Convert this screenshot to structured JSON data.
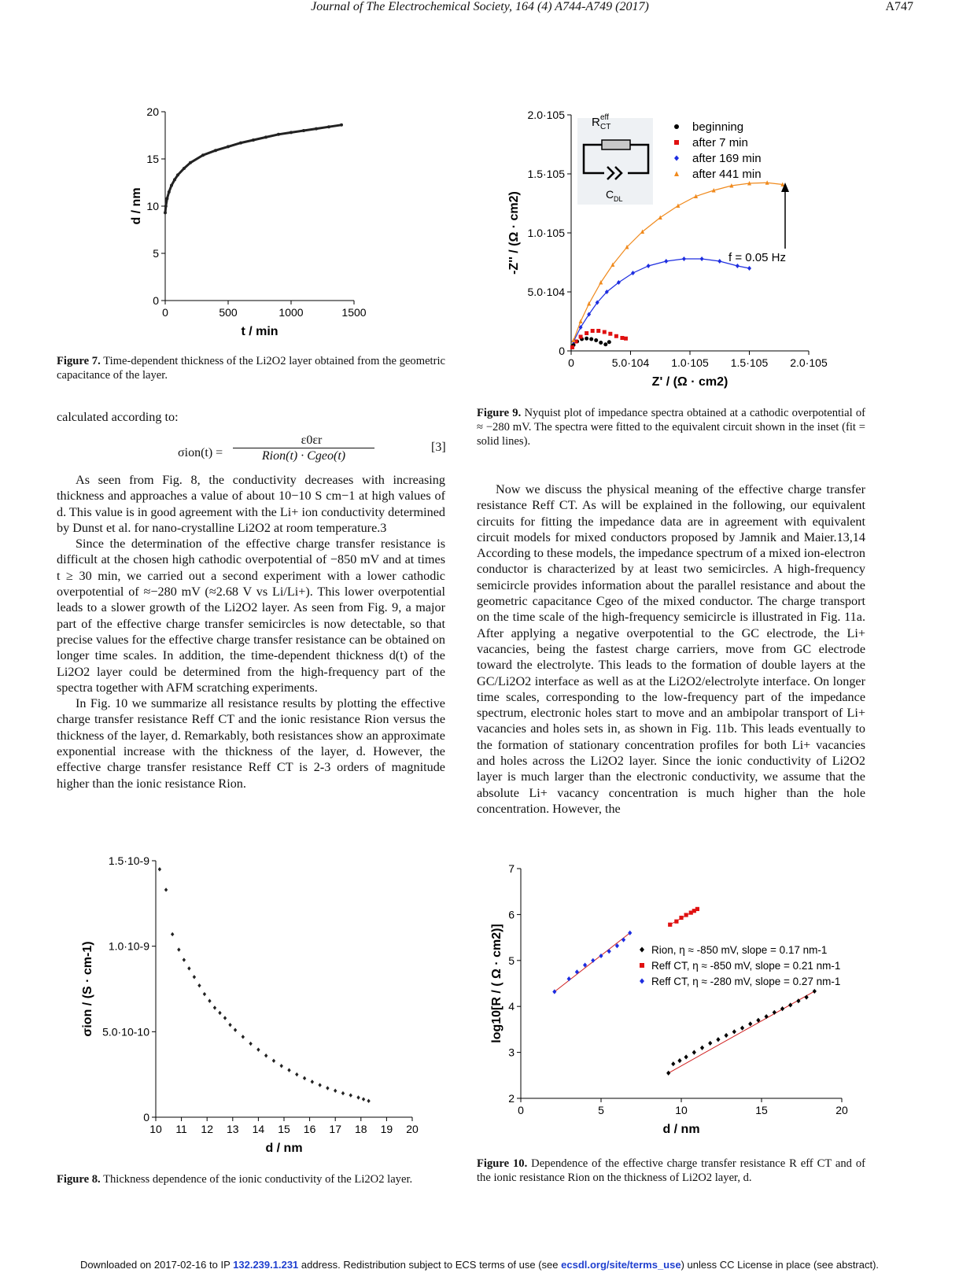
{
  "header": {
    "journal": "Journal of The Electrochemical Society, 164 (4) A744-A749 (2017)",
    "page": "A747"
  },
  "fig7": {
    "caption_label": "Figure 7.",
    "caption_text": "Time-dependent thickness of the Li2O2 layer obtained from the geometric capacitance of the layer.",
    "chart_data": {
      "type": "scatter",
      "xlabel": "t / min",
      "ylabel": "d / nm",
      "xlim": [
        0,
        1500
      ],
      "ylim": [
        0,
        20
      ],
      "xticks": [
        "0",
        "500",
        "1000",
        "1500"
      ],
      "yticks": [
        "0",
        "5",
        "10",
        "15",
        "20"
      ],
      "x": [
        0,
        5,
        15,
        30,
        50,
        75,
        100,
        150,
        200,
        300,
        400,
        500,
        600,
        700,
        800,
        900,
        1000,
        1100,
        1200,
        1300,
        1400
      ],
      "y": [
        9.3,
        10.0,
        10.8,
        11.5,
        12.2,
        12.8,
        13.3,
        14.0,
        14.6,
        15.4,
        15.9,
        16.3,
        16.7,
        17.0,
        17.3,
        17.6,
        17.8,
        18.0,
        18.2,
        18.4,
        18.6
      ]
    }
  },
  "fig8": {
    "caption_label": "Figure 8.",
    "caption_text": "Thickness dependence of the ionic conductivity of the Li2O2 layer.",
    "chart_data": {
      "type": "scatter",
      "xlabel": "d / nm",
      "ylabel": "σion / (S · cm-1)",
      "xlim": [
        10,
        20
      ],
      "ylim": [
        0,
        1.5e-09
      ],
      "xticks": [
        "10",
        "11",
        "12",
        "13",
        "14",
        "15",
        "16",
        "17",
        "18",
        "19",
        "20"
      ],
      "yticks": [
        "0",
        "5.0·10-10",
        "1.0·10-9",
        "1.5·10-9"
      ],
      "x": [
        10.15,
        10.4,
        10.65,
        10.9,
        11.1,
        11.3,
        11.5,
        11.7,
        11.9,
        12.1,
        12.3,
        12.5,
        12.7,
        12.9,
        13.1,
        13.4,
        13.7,
        14.0,
        14.3,
        14.6,
        14.9,
        15.2,
        15.5,
        15.8,
        16.1,
        16.4,
        16.7,
        17.0,
        17.3,
        17.6,
        17.9,
        18.1,
        18.3
      ],
      "y": [
        1.45e-09,
        1.33e-09,
        1.07e-09,
        9.8e-10,
        9.2e-10,
        8.7e-10,
        8.2e-10,
        7.7e-10,
        7.2e-10,
        6.8e-10,
        6.4e-10,
        6.1e-10,
        5.8e-10,
        5.4e-10,
        5.1e-10,
        4.7e-10,
        4.3e-10,
        3.95e-10,
        3.6e-10,
        3.3e-10,
        3e-10,
        2.75e-10,
        2.5e-10,
        2.28e-10,
        2.07e-10,
        1.88e-10,
        1.7e-10,
        1.55e-10,
        1.4e-10,
        1.28e-10,
        1.15e-10,
        1.05e-10,
        9.5e-11
      ]
    }
  },
  "fig9": {
    "caption_label": "Figure 9.",
    "caption_text": "Nyquist plot of impedance spectra obtained at a cathodic overpotential of ≈ −280 mV. The spectra were fitted to the equivalent circuit shown in the inset (fit = solid lines).",
    "inset_labels": {
      "rct": "R",
      "rct_sup": "eff",
      "rct_sub": "CT",
      "cdl": "C",
      "cdl_sub": "DL"
    },
    "annotation": "f = 0.05 Hz",
    "chart_data": {
      "type": "scatter",
      "xlabel": "Z' / (Ω · cm2)",
      "ylabel": "-Z'' / (Ω · cm2)",
      "xlim": [
        0,
        200000.0
      ],
      "ylim": [
        0,
        200000.0
      ],
      "xticks": [
        "0",
        "5.0·104",
        "1.0·105",
        "1.5·105",
        "2.0·105"
      ],
      "yticks": [
        "0",
        "5.0·104",
        "1.0·105",
        "1.5·105",
        "2.0·105"
      ],
      "legend_position": "top-right",
      "series": [
        {
          "name": "beginning",
          "color": "#000000",
          "marker": "circle",
          "x": [
            2000,
            5000,
            9000,
            13000,
            17000,
            21000,
            25000,
            29000,
            32000
          ],
          "y": [
            5000,
            8000,
            10000,
            10500,
            10000,
            9000,
            7000,
            5500,
            7500
          ]
        },
        {
          "name": "after 7 min",
          "color": "#e01010",
          "marker": "square",
          "x": [
            1000,
            4000,
            8000,
            13000,
            18000,
            23000,
            28000,
            33000,
            38000,
            43000,
            46000
          ],
          "y": [
            3000,
            8000,
            12000,
            15000,
            17000,
            17000,
            16000,
            14500,
            12500,
            11000,
            10500
          ]
        },
        {
          "name": "after 169 min",
          "color": "#1d2de0",
          "marker": "diamond",
          "x": [
            2000,
            8000,
            15000,
            22000,
            30000,
            40000,
            52000,
            65000,
            80000,
            95000,
            110000,
            125000,
            140000,
            150000
          ],
          "y": [
            8000,
            20000,
            31000,
            41000,
            50000,
            58000,
            66000,
            72000,
            76000,
            78000,
            78000,
            76000,
            72000,
            70000
          ]
        },
        {
          "name": "after 441 min",
          "color": "#f08a1d",
          "marker": "triangle",
          "x": [
            2000,
            8000,
            15000,
            25000,
            35000,
            47000,
            60000,
            75000,
            90000,
            105000,
            120000,
            135000,
            150000,
            165000,
            178000
          ],
          "y": [
            9000,
            25000,
            40000,
            58000,
            73000,
            88000,
            101000,
            113000,
            123000,
            131000,
            136000,
            140000,
            142000,
            142500,
            141000
          ]
        }
      ]
    }
  },
  "fig10": {
    "caption_label": "Figure 10.",
    "caption_text": "Dependence of the effective charge transfer resistance R eff CT and of the ionic resistance Rion on the thickness of Li2O2 layer, d.",
    "chart_data": {
      "type": "scatter",
      "xlabel": "d / nm",
      "ylabel": "log10[R / ( Ω · cm2)]",
      "xlim": [
        0,
        20
      ],
      "ylim": [
        2,
        7
      ],
      "xticks": [
        "0",
        "5",
        "10",
        "15",
        "20"
      ],
      "yticks": [
        "2",
        "3",
        "4",
        "5",
        "6",
        "7"
      ],
      "legend_position": "right",
      "series": [
        {
          "name": "Rion, η ≈ -850 mV, slope = 0.17 nm-1",
          "color": "#000000",
          "marker": "diamond",
          "x": [
            9.2,
            9.5,
            9.9,
            10.3,
            10.8,
            11.3,
            11.8,
            12.3,
            12.8,
            13.3,
            13.8,
            14.3,
            14.8,
            15.3,
            15.8,
            16.3,
            16.8,
            17.3,
            17.8,
            18.3
          ],
          "y": [
            2.55,
            2.75,
            2.82,
            2.9,
            3.0,
            3.1,
            3.2,
            3.28,
            3.37,
            3.45,
            3.53,
            3.62,
            3.7,
            3.78,
            3.87,
            3.95,
            4.03,
            4.12,
            4.2,
            4.33
          ]
        },
        {
          "name": "Reff CT, η ≈ -850 mV, slope = 0.21 nm-1",
          "color": "#e01010",
          "marker": "square",
          "x": [
            9.3,
            9.7,
            10.0,
            10.3,
            10.6,
            10.8,
            11.0
          ],
          "y": [
            5.78,
            5.85,
            5.93,
            5.99,
            6.04,
            6.08,
            6.12
          ]
        },
        {
          "name": "Reff CT, η ≈ -280 mV, slope = 0.27 nm-1",
          "color": "#1d2de0",
          "marker": "diamond",
          "x": [
            2.1,
            3.0,
            3.5,
            4.0,
            4.5,
            5.0,
            5.5,
            6.0,
            6.4,
            6.8
          ],
          "y": [
            4.32,
            4.6,
            4.75,
            4.9,
            5.0,
            5.1,
            5.2,
            5.32,
            5.45,
            5.6
          ]
        }
      ]
    }
  },
  "left_text": {
    "intro": "calculated according to:",
    "eq_lhs": "σion(t) =",
    "eq_num": "ε0εr",
    "eq_den": "Rion(t) · Cgeo(t)",
    "eq_no": "[3]",
    "p1": "As seen from Fig. 8, the conductivity decreases with increasing thickness and approaches a value of about 10−10 S cm−1 at high values of d. This value is in good agreement with the Li+ ion conductivity determined by Dunst et al. for nano-crystalline Li2O2 at room temperature.3",
    "p2": "Since the determination of the effective charge transfer resistance is difficult at the chosen high cathodic overpotential of −850 mV and at times t ≥ 30 min, we carried out a second experiment with a lower cathodic overpotential of ≈−280 mV (≈2.68 V vs Li/Li+). This lower overpotential leads to a slower growth of the Li2O2 layer. As seen from Fig. 9, a major part of the effective charge transfer semicircles is now detectable, so that precise values for the effective charge transfer resistance can be obtained on longer time scales. In addition, the time-dependent thickness d(t) of the Li2O2 layer could be determined from the high-frequency part of the spectra together with AFM scratching experiments.",
    "p3": "In Fig. 10 we summarize all resistance results by plotting the effective charge transfer resistance Reff CT and the ionic resistance Rion versus the thickness of the layer, d. Remarkably, both resistances show an approximate exponential increase with the thickness of the layer, d. However, the effective charge transfer resistance Reff CT is 2-3 orders of magnitude higher than the ionic resistance Rion."
  },
  "right_text": {
    "p1": "Now we discuss the physical meaning of the effective charge transfer resistance Reff CT. As will be explained in the following, our equivalent circuits for fitting the impedance data are in agreement with equivalent circuit models for mixed conductors proposed by Jamnik and Maier.13,14 According to these models, the impedance spectrum of a mixed ion-electron conductor is characterized by at least two semicircles. A high-frequency semicircle provides information about the parallel resistance and about the geometric capacitance Cgeo of the mixed conductor. The charge transport on the time scale of the high-frequency semicircle is illustrated in Fig. 11a. After applying a negative overpotential to the GC electrode, the Li+ vacancies, being the fastest charge carriers, move from GC electrode toward the electrolyte. This leads to the formation of double layers at the GC/Li2O2 interface as well as at the Li2O2/electrolyte interface. On longer time scales, corresponding to the low-frequency part of the impedance spectrum, electronic holes start to move and an ambipolar transport of Li+ vacancies and holes sets in, as shown in Fig. 11b. This leads eventually to the formation of stationary concentration profiles for both Li+ vacancies and holes across the Li2O2 layer. Since the ionic conductivity of Li2O2 layer is much larger than the electronic conductivity, we assume that the absolute Li+ vacancy concentration is much higher than the hole concentration. However, the"
  },
  "footer": {
    "pre": "Downloaded on 2017-02-16 to IP",
    "ip": "132.239.1.231",
    "mid": "address. Redistribution subject to ECS terms of use (see",
    "link": "ecsdl.org/site/terms_use",
    "post": ") unless CC License in place (see abstract)."
  }
}
